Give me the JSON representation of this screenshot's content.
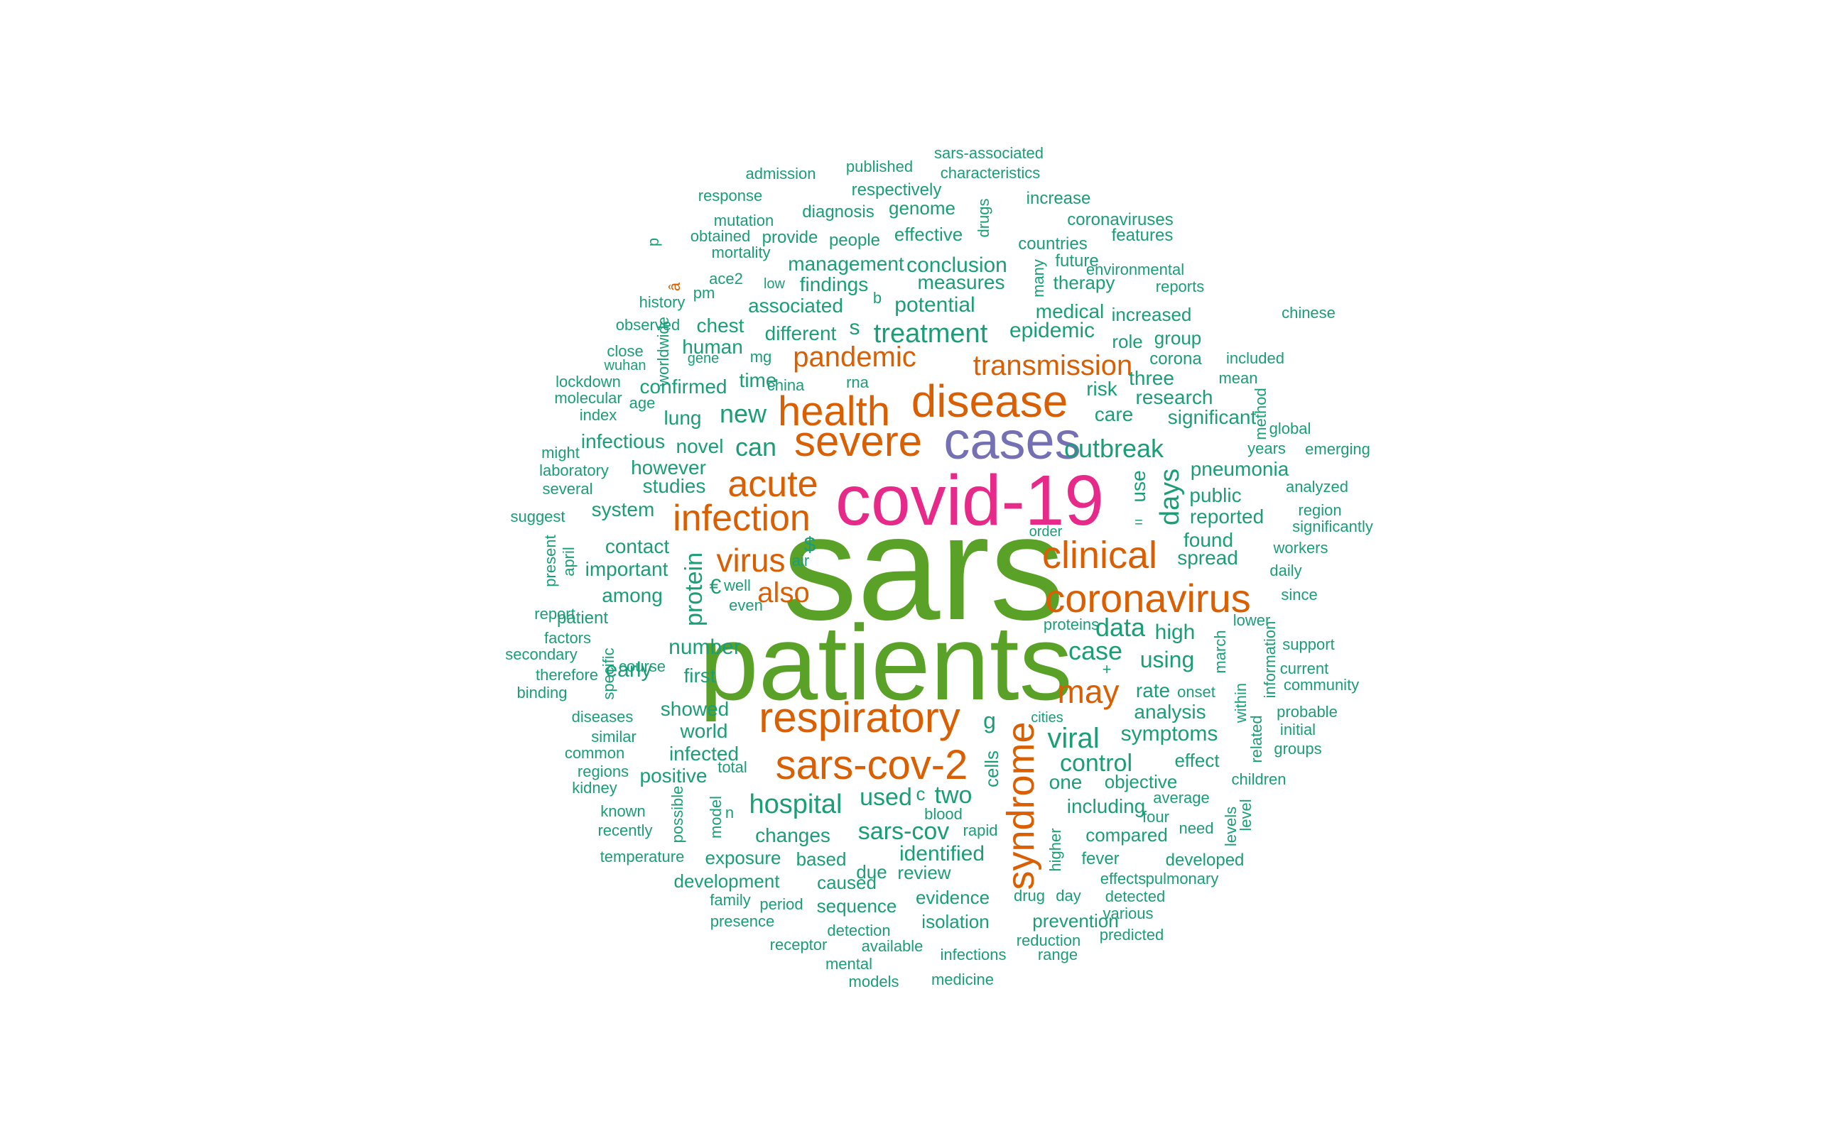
{
  "colors": {
    "highest": "#5aa127",
    "pink": "#e7298a",
    "purple": "#7570b3",
    "orange": "#d95f02",
    "teal": "#1b9e77"
  },
  "words": [
    {
      "text": "sars",
      "color": "highest"
    },
    {
      "text": "patients",
      "color": "highest"
    },
    {
      "text": "covid-19",
      "color": "pink"
    },
    {
      "text": "cases",
      "color": "purple"
    },
    {
      "text": "disease",
      "color": "orange"
    },
    {
      "text": "severe",
      "color": "orange"
    },
    {
      "text": "health",
      "color": "orange"
    },
    {
      "text": "respiratory",
      "color": "orange"
    },
    {
      "text": "sars-cov-2",
      "color": "orange"
    },
    {
      "text": "coronavirus",
      "color": "orange"
    },
    {
      "text": "infection",
      "color": "orange"
    },
    {
      "text": "acute",
      "color": "orange"
    },
    {
      "text": "clinical",
      "color": "orange"
    },
    {
      "text": "syndrome",
      "color": "orange"
    },
    {
      "text": "transmission",
      "color": "orange"
    },
    {
      "text": "pandemic",
      "color": "orange"
    },
    {
      "text": "virus",
      "color": "orange"
    },
    {
      "text": "may",
      "color": "orange"
    },
    {
      "text": "also",
      "color": "orange"
    },
    {
      "text": "treatment",
      "color": "teal"
    },
    {
      "text": "viral",
      "color": "teal"
    },
    {
      "text": "outbreak",
      "color": "teal"
    },
    {
      "text": "hospital",
      "color": "teal"
    },
    {
      "text": "case",
      "color": "teal"
    },
    {
      "text": "data",
      "color": "teal"
    },
    {
      "text": "days",
      "color": "teal"
    },
    {
      "text": "can",
      "color": "teal"
    },
    {
      "text": "new",
      "color": "teal"
    },
    {
      "text": "control",
      "color": "teal"
    },
    {
      "text": "protein",
      "color": "teal"
    },
    {
      "text": "sars-cov",
      "color": "teal"
    },
    {
      "text": "used",
      "color": "teal"
    },
    {
      "text": "two",
      "color": "teal"
    },
    {
      "text": "number",
      "color": "teal"
    },
    {
      "text": "potential",
      "color": "teal"
    },
    {
      "text": "conclusion",
      "color": "teal"
    },
    {
      "text": "management",
      "color": "teal"
    },
    {
      "text": "measures",
      "color": "teal"
    },
    {
      "text": "identified",
      "color": "teal"
    },
    {
      "text": "epidemic",
      "color": "teal"
    },
    {
      "text": "medical",
      "color": "teal"
    },
    {
      "text": "using",
      "color": "teal"
    },
    {
      "text": "high",
      "color": "teal"
    },
    {
      "text": "rate",
      "color": "teal"
    },
    {
      "text": "analysis",
      "color": "teal"
    },
    {
      "text": "symptoms",
      "color": "teal"
    },
    {
      "text": "studies",
      "color": "teal"
    },
    {
      "text": "contact",
      "color": "teal"
    },
    {
      "text": "important",
      "color": "teal"
    },
    {
      "text": "among",
      "color": "teal"
    },
    {
      "text": "showed",
      "color": "teal"
    },
    {
      "text": "world",
      "color": "teal"
    },
    {
      "text": "infected",
      "color": "teal"
    },
    {
      "text": "positive",
      "color": "teal"
    },
    {
      "text": "first",
      "color": "teal"
    },
    {
      "text": "time",
      "color": "teal"
    },
    {
      "text": "lung",
      "color": "teal"
    },
    {
      "text": "novel",
      "color": "teal"
    },
    {
      "text": "however",
      "color": "teal"
    },
    {
      "text": "system",
      "color": "teal"
    },
    {
      "text": "infectious",
      "color": "teal"
    },
    {
      "text": "confirmed",
      "color": "teal"
    },
    {
      "text": "human",
      "color": "teal"
    },
    {
      "text": "chest",
      "color": "teal"
    },
    {
      "text": "associated",
      "color": "teal"
    },
    {
      "text": "findings",
      "color": "teal"
    },
    {
      "text": "different",
      "color": "teal"
    },
    {
      "text": "care",
      "color": "teal"
    },
    {
      "text": "risk",
      "color": "teal"
    },
    {
      "text": "three",
      "color": "teal"
    },
    {
      "text": "research",
      "color": "teal"
    },
    {
      "text": "significant",
      "color": "teal"
    },
    {
      "text": "pneumonia",
      "color": "teal"
    },
    {
      "text": "public",
      "color": "teal"
    },
    {
      "text": "reported",
      "color": "teal"
    },
    {
      "text": "found",
      "color": "teal"
    },
    {
      "text": "spread",
      "color": "teal"
    },
    {
      "text": "use",
      "color": "teal"
    },
    {
      "text": "one",
      "color": "teal"
    },
    {
      "text": "including",
      "color": "teal"
    },
    {
      "text": "objective",
      "color": "teal"
    },
    {
      "text": "compared",
      "color": "teal"
    },
    {
      "text": "effect",
      "color": "teal"
    },
    {
      "text": "changes",
      "color": "teal"
    },
    {
      "text": "based",
      "color": "teal"
    },
    {
      "text": "review",
      "color": "teal"
    },
    {
      "text": "evidence",
      "color": "teal"
    },
    {
      "text": "sequence",
      "color": "teal"
    },
    {
      "text": "isolation",
      "color": "teal"
    },
    {
      "text": "prevention",
      "color": "teal"
    },
    {
      "text": "exposure",
      "color": "teal"
    },
    {
      "text": "due",
      "color": "teal"
    },
    {
      "text": "caused",
      "color": "teal"
    },
    {
      "text": "development",
      "color": "teal"
    },
    {
      "text": "cells",
      "color": "teal"
    },
    {
      "text": "increased",
      "color": "teal"
    },
    {
      "text": "group",
      "color": "teal"
    },
    {
      "text": "role",
      "color": "teal"
    },
    {
      "text": "corona",
      "color": "teal"
    },
    {
      "text": "therapy",
      "color": "teal"
    },
    {
      "text": "future",
      "color": "teal"
    },
    {
      "text": "countries",
      "color": "teal"
    },
    {
      "text": "features",
      "color": "teal"
    },
    {
      "text": "coronaviruses",
      "color": "teal"
    },
    {
      "text": "increase",
      "color": "teal"
    },
    {
      "text": "effective",
      "color": "teal"
    },
    {
      "text": "people",
      "color": "teal"
    },
    {
      "text": "provide",
      "color": "teal"
    },
    {
      "text": "diagnosis",
      "color": "teal"
    },
    {
      "text": "genome",
      "color": "teal"
    },
    {
      "text": "respectively",
      "color": "teal"
    },
    {
      "text": "published",
      "color": "teal"
    },
    {
      "text": "sars-associated",
      "color": "teal"
    },
    {
      "text": "characteristics",
      "color": "teal"
    },
    {
      "text": "admission",
      "color": "teal"
    },
    {
      "text": "response",
      "color": "teal"
    },
    {
      "text": "mutation",
      "color": "teal"
    },
    {
      "text": "obtained",
      "color": "teal"
    },
    {
      "text": "mortality",
      "color": "teal"
    },
    {
      "text": "ace2",
      "color": "teal"
    },
    {
      "text": "pm",
      "color": "teal"
    },
    {
      "text": "low",
      "color": "teal"
    },
    {
      "text": "history",
      "color": "teal"
    },
    {
      "text": "observed",
      "color": "teal"
    },
    {
      "text": "close",
      "color": "teal"
    },
    {
      "text": "wuhan",
      "color": "teal"
    },
    {
      "text": "gene",
      "color": "teal"
    },
    {
      "text": "mg",
      "color": "teal"
    },
    {
      "text": "lockdown",
      "color": "teal"
    },
    {
      "text": "molecular",
      "color": "teal"
    },
    {
      "text": "age",
      "color": "teal"
    },
    {
      "text": "index",
      "color": "teal"
    },
    {
      "text": "china",
      "color": "teal"
    },
    {
      "text": "rna",
      "color": "teal"
    },
    {
      "text": "might",
      "color": "teal"
    },
    {
      "text": "laboratory",
      "color": "teal"
    },
    {
      "text": "several",
      "color": "teal"
    },
    {
      "text": "suggest",
      "color": "teal"
    },
    {
      "text": "report",
      "color": "teal"
    },
    {
      "text": "patient",
      "color": "teal"
    },
    {
      "text": "factors",
      "color": "teal"
    },
    {
      "text": "secondary",
      "color": "teal"
    },
    {
      "text": "therefore",
      "color": "teal"
    },
    {
      "text": "binding",
      "color": "teal"
    },
    {
      "text": "diseases",
      "color": "teal"
    },
    {
      "text": "similar",
      "color": "teal"
    },
    {
      "text": "common",
      "color": "teal"
    },
    {
      "text": "regions",
      "color": "teal"
    },
    {
      "text": "kidney",
      "color": "teal"
    },
    {
      "text": "known",
      "color": "teal"
    },
    {
      "text": "recently",
      "color": "teal"
    },
    {
      "text": "temperature",
      "color": "teal"
    },
    {
      "text": "early",
      "color": "teal"
    },
    {
      "text": "course",
      "color": "teal"
    },
    {
      "text": "total",
      "color": "teal"
    },
    {
      "text": "family",
      "color": "teal"
    },
    {
      "text": "period",
      "color": "teal"
    },
    {
      "text": "presence",
      "color": "teal"
    },
    {
      "text": "receptor",
      "color": "teal"
    },
    {
      "text": "detection",
      "color": "teal"
    },
    {
      "text": "available",
      "color": "teal"
    },
    {
      "text": "mental",
      "color": "teal"
    },
    {
      "text": "models",
      "color": "teal"
    },
    {
      "text": "medicine",
      "color": "teal"
    },
    {
      "text": "infections",
      "color": "teal"
    },
    {
      "text": "reduction",
      "color": "teal"
    },
    {
      "text": "range",
      "color": "teal"
    },
    {
      "text": "predicted",
      "color": "teal"
    },
    {
      "text": "various",
      "color": "teal"
    },
    {
      "text": "detected",
      "color": "teal"
    },
    {
      "text": "pulmonary",
      "color": "teal"
    },
    {
      "text": "effects",
      "color": "teal"
    },
    {
      "text": "developed",
      "color": "teal"
    },
    {
      "text": "fever",
      "color": "teal"
    },
    {
      "text": "day",
      "color": "teal"
    },
    {
      "text": "drug",
      "color": "teal"
    },
    {
      "text": "blood",
      "color": "teal"
    },
    {
      "text": "rapid",
      "color": "teal"
    },
    {
      "text": "average",
      "color": "teal"
    },
    {
      "text": "four",
      "color": "teal"
    },
    {
      "text": "need",
      "color": "teal"
    },
    {
      "text": "children",
      "color": "teal"
    },
    {
      "text": "groups",
      "color": "teal"
    },
    {
      "text": "initial",
      "color": "teal"
    },
    {
      "text": "probable",
      "color": "teal"
    },
    {
      "text": "community",
      "color": "teal"
    },
    {
      "text": "current",
      "color": "teal"
    },
    {
      "text": "support",
      "color": "teal"
    },
    {
      "text": "lower",
      "color": "teal"
    },
    {
      "text": "since",
      "color": "teal"
    },
    {
      "text": "daily",
      "color": "teal"
    },
    {
      "text": "workers",
      "color": "teal"
    },
    {
      "text": "significantly",
      "color": "teal"
    },
    {
      "text": "region",
      "color": "teal"
    },
    {
      "text": "analyzed",
      "color": "teal"
    },
    {
      "text": "years",
      "color": "teal"
    },
    {
      "text": "emerging",
      "color": "teal"
    },
    {
      "text": "global",
      "color": "teal"
    },
    {
      "text": "mean",
      "color": "teal"
    },
    {
      "text": "included",
      "color": "teal"
    },
    {
      "text": "chinese",
      "color": "teal"
    },
    {
      "text": "reports",
      "color": "teal"
    },
    {
      "text": "environmental",
      "color": "teal"
    },
    {
      "text": "proteins",
      "color": "teal"
    },
    {
      "text": "onset",
      "color": "teal"
    },
    {
      "text": "well",
      "color": "teal"
    },
    {
      "text": "even",
      "color": "teal"
    },
    {
      "text": "air",
      "color": "teal"
    },
    {
      "text": "$",
      "color": "teal"
    },
    {
      "text": "€",
      "color": "teal"
    },
    {
      "text": "s",
      "color": "teal"
    },
    {
      "text": "=",
      "color": "teal"
    },
    {
      "text": "+",
      "color": "teal"
    },
    {
      "text": "b",
      "color": "teal"
    },
    {
      "text": "n",
      "color": "teal"
    },
    {
      "text": "g",
      "color": "teal"
    },
    {
      "text": "p",
      "color": "teal"
    },
    {
      "text": "â",
      "color": "orange"
    },
    {
      "text": "worldwide",
      "color": "teal"
    },
    {
      "text": "drugs",
      "color": "teal"
    },
    {
      "text": "many",
      "color": "teal"
    },
    {
      "text": "present",
      "color": "teal"
    },
    {
      "text": "april",
      "color": "teal"
    },
    {
      "text": "specific",
      "color": "teal"
    },
    {
      "text": "possible",
      "color": "teal"
    },
    {
      "text": "model",
      "color": "teal"
    },
    {
      "text": "higher",
      "color": "teal"
    },
    {
      "text": "march",
      "color": "teal"
    },
    {
      "text": "within",
      "color": "teal"
    },
    {
      "text": "related",
      "color": "teal"
    },
    {
      "text": "information",
      "color": "teal"
    },
    {
      "text": "method",
      "color": "teal"
    },
    {
      "text": "levels",
      "color": "teal"
    },
    {
      "text": "level",
      "color": "teal"
    },
    {
      "text": "cities",
      "color": "teal"
    },
    {
      "text": "order",
      "color": "teal"
    },
    {
      "text": "c",
      "color": "teal"
    },
    {
      "text": "t",
      "color": "teal"
    },
    {
      "text": "l",
      "color": "teal"
    }
  ]
}
